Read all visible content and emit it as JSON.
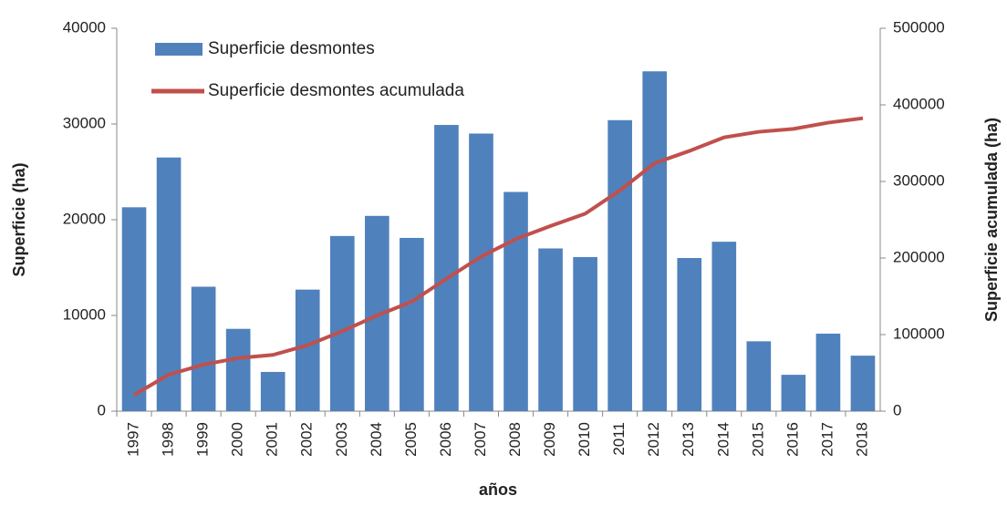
{
  "chart_data": {
    "type": "bar_line",
    "categories": [
      "1997",
      "1998",
      "1999",
      "2000",
      "2001",
      "2002",
      "2003",
      "2004",
      "2005",
      "2006",
      "2007",
      "2008",
      "2009",
      "2010",
      "2011",
      "2012",
      "2013",
      "2014",
      "2015",
      "2016",
      "2017",
      "2018"
    ],
    "series": [
      {
        "name": "Superficie desmontes",
        "color": "#4f81bd",
        "type": "bar",
        "values": [
          21300,
          26500,
          13000,
          8600,
          4100,
          12700,
          18300,
          20400,
          18100,
          29900,
          29000,
          22900,
          17000,
          16100,
          30400,
          35500,
          16000,
          17700,
          7300,
          3800,
          8100,
          5800
        ]
      },
      {
        "name": "Superficie desmontes acumulada",
        "color": "#c0504d",
        "type": "line",
        "axis": "y2",
        "values": [
          21300,
          47800,
          60800,
          69400,
          73500,
          86200,
          104500,
          124900,
          143000,
          172900,
          201900,
          224800,
          241800,
          257900,
          288300,
          323800,
          339800,
          357500,
          364800,
          368600,
          376700,
          382500
        ]
      }
    ],
    "xlabel": "años",
    "ylabel": "Superficie (ha)",
    "y2label": "Superficie acumulada (ha)",
    "ylim": [
      0,
      40000
    ],
    "yticks": [
      0,
      10000,
      20000,
      30000,
      40000
    ],
    "y2lim": [
      0,
      500000
    ],
    "y2ticks": [
      0,
      100000,
      200000,
      300000,
      400000,
      500000
    ],
    "legend": "top-left"
  }
}
